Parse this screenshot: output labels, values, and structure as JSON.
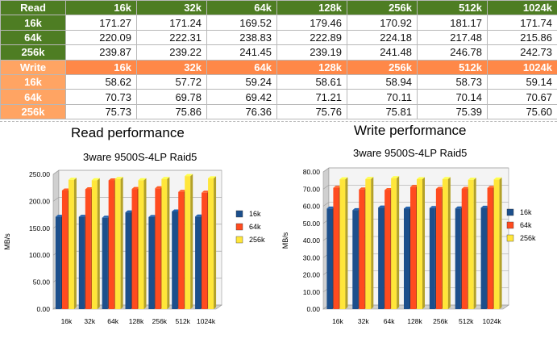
{
  "table": {
    "columns": [
      "16k",
      "32k",
      "64k",
      "128k",
      "256k",
      "512k",
      "1024k"
    ],
    "read": {
      "label": "Read",
      "rows": [
        {
          "label": "16k",
          "values": [
            "171.27",
            "171.24",
            "169.52",
            "179.46",
            "170.92",
            "181.17",
            "171.74"
          ]
        },
        {
          "label": "64k",
          "values": [
            "220.09",
            "222.31",
            "238.83",
            "222.89",
            "224.18",
            "217.48",
            "215.86"
          ]
        },
        {
          "label": "256k",
          "values": [
            "239.87",
            "239.22",
            "241.45",
            "239.19",
            "241.48",
            "246.78",
            "242.73"
          ]
        }
      ]
    },
    "write": {
      "label": "Write",
      "rows": [
        {
          "label": "16k",
          "values": [
            "58.62",
            "57.72",
            "59.24",
            "58.61",
            "58.94",
            "58.73",
            "59.14"
          ]
        },
        {
          "label": "64k",
          "values": [
            "70.73",
            "69.78",
            "69.42",
            "71.21",
            "70.11",
            "70.14",
            "70.67"
          ]
        },
        {
          "label": "256k",
          "values": [
            "75.73",
            "75.86",
            "76.36",
            "75.76",
            "75.81",
            "75.39",
            "75.60"
          ]
        }
      ]
    }
  },
  "colors": {
    "16k": "#1c4f8c",
    "64k": "#ff4b1f",
    "256k": "#ffe63a",
    "read_header": "#4e7d23",
    "write_header": "#ff8848"
  },
  "chart_data": [
    {
      "type": "bar",
      "title": "Read performance",
      "subtitle": "3ware 9500S-4LP Raid5",
      "ylabel": "MB/s",
      "xlabel": "",
      "ylim": [
        0,
        250
      ],
      "yticks": [
        "0.00",
        "50.00",
        "100.00",
        "150.00",
        "200.00",
        "250.00"
      ],
      "grid": true,
      "legend": "right",
      "categories": [
        "16k",
        "32k",
        "64k",
        "128k",
        "256k",
        "512k",
        "1024k"
      ],
      "series": [
        {
          "name": "16k",
          "values": [
            171.27,
            171.24,
            169.52,
            179.46,
            170.92,
            181.17,
            171.74
          ]
        },
        {
          "name": "64k",
          "values": [
            220.09,
            222.31,
            238.83,
            222.89,
            224.18,
            217.48,
            215.86
          ]
        },
        {
          "name": "256k",
          "values": [
            239.87,
            239.22,
            241.45,
            239.19,
            241.48,
            246.78,
            242.73
          ]
        }
      ]
    },
    {
      "type": "bar",
      "title": "Write performance",
      "subtitle": "3ware 9500S-4LP Raid5",
      "ylabel": "MB/s",
      "xlabel": "",
      "ylim": [
        0,
        80
      ],
      "yticks": [
        "0.00",
        "10.00",
        "20.00",
        "30.00",
        "40.00",
        "50.00",
        "60.00",
        "70.00",
        "80.00"
      ],
      "grid": true,
      "legend": "right",
      "categories": [
        "16k",
        "32k",
        "64k",
        "128k",
        "256k",
        "512k",
        "1024k"
      ],
      "series": [
        {
          "name": "16k",
          "values": [
            58.62,
            57.72,
            59.24,
            58.61,
            58.94,
            58.73,
            59.14
          ]
        },
        {
          "name": "64k",
          "values": [
            70.73,
            69.78,
            69.42,
            71.21,
            70.11,
            70.14,
            70.67
          ]
        },
        {
          "name": "256k",
          "values": [
            75.73,
            75.86,
            76.36,
            75.76,
            75.81,
            75.39,
            75.6
          ]
        }
      ]
    }
  ]
}
